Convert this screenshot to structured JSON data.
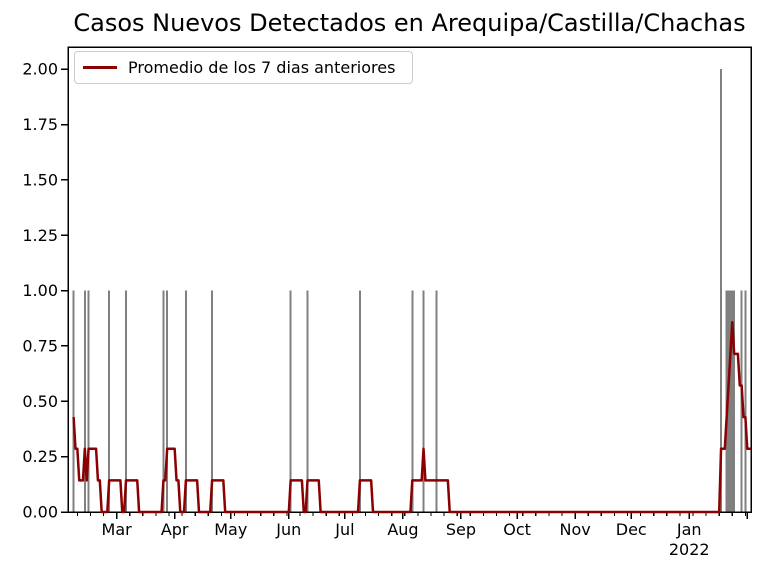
{
  "chart_data": {
    "type": "bar",
    "title": "Casos Nuevos Detectados en Arequipa/Castilla/Chachas",
    "x_start": "2021-02-03",
    "x_end": "2022-02-03",
    "ylim": [
      0,
      2.1
    ],
    "grid": false,
    "legend_position": "upper-left",
    "bar_color": "#808080",
    "line_color": "#8B0000",
    "axis_color": "#000000",
    "legend_border_color": "#cccccc",
    "yticks": [
      {
        "value": 0.0,
        "label": "0.00"
      },
      {
        "value": 0.25,
        "label": "0.25"
      },
      {
        "value": 0.5,
        "label": "0.50"
      },
      {
        "value": 0.75,
        "label": "0.75"
      },
      {
        "value": 1.0,
        "label": "1.00"
      },
      {
        "value": 1.25,
        "label": "1.25"
      },
      {
        "value": 1.5,
        "label": "1.50"
      },
      {
        "value": 1.75,
        "label": "1.75"
      },
      {
        "value": 2.0,
        "label": "2.00"
      }
    ],
    "xticks": [
      {
        "date": "2021-03-01",
        "label": "Mar"
      },
      {
        "date": "2021-04-01",
        "label": "Apr"
      },
      {
        "date": "2021-05-01",
        "label": "May"
      },
      {
        "date": "2021-06-01",
        "label": "Jun"
      },
      {
        "date": "2021-07-01",
        "label": "Jul"
      },
      {
        "date": "2021-08-01",
        "label": "Aug"
      },
      {
        "date": "2021-09-01",
        "label": "Sep"
      },
      {
        "date": "2021-10-01",
        "label": "Oct"
      },
      {
        "date": "2021-11-01",
        "label": "Nov"
      },
      {
        "date": "2021-12-01",
        "label": "Dec"
      },
      {
        "date": "2022-01-01",
        "label": "Jan",
        "sublabel": "2022"
      },
      {
        "date": "2022-02-01",
        "label": ""
      }
    ],
    "minor_ticks": {
      "start": "2021-02-08",
      "interval_days": 7
    },
    "daily_cases": [
      [
        "2021-01-31",
        1
      ],
      [
        "2021-02-02",
        1
      ],
      [
        "2021-02-06",
        1
      ],
      [
        "2021-02-12",
        1
      ],
      [
        "2021-02-14",
        1
      ],
      [
        "2021-02-25",
        1
      ],
      [
        "2021-03-06",
        1
      ],
      [
        "2021-03-26",
        1
      ],
      [
        "2021-03-28",
        1
      ],
      [
        "2021-04-07",
        1
      ],
      [
        "2021-04-21",
        1
      ],
      [
        "2021-06-02",
        1
      ],
      [
        "2021-06-11",
        1
      ],
      [
        "2021-07-09",
        1
      ],
      [
        "2021-08-06",
        1
      ],
      [
        "2021-08-12",
        1
      ],
      [
        "2021-08-19",
        1
      ],
      [
        "2022-01-18",
        2
      ],
      [
        "2022-01-21",
        1
      ],
      [
        "2022-01-22",
        1
      ],
      [
        "2022-01-23",
        1
      ],
      [
        "2022-01-24",
        1
      ],
      [
        "2022-01-25",
        1
      ],
      [
        "2022-01-29",
        1
      ],
      [
        "2022-01-31",
        1
      ]
    ],
    "average": {
      "window_days": 7,
      "start": "2021-02-06",
      "label": "Promedio de los 7 dias anteriores",
      "peak_value": 0.857,
      "end_value": 0.286
    }
  }
}
